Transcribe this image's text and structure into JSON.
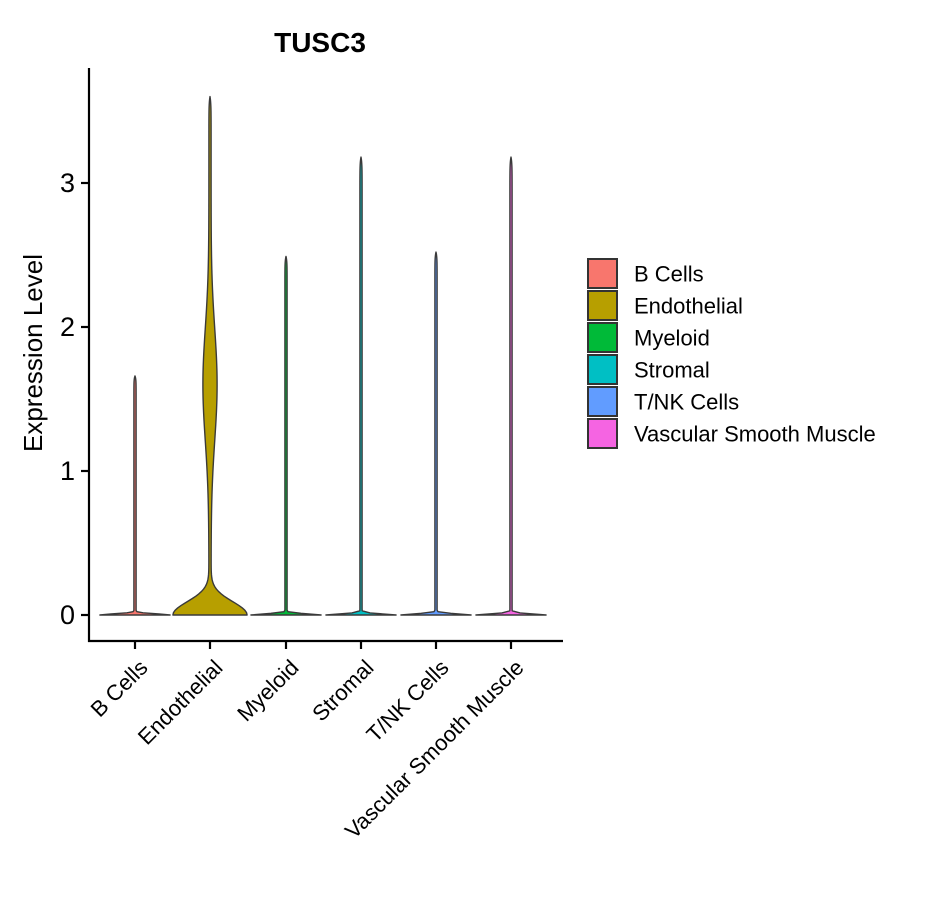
{
  "chart_data": {
    "type": "violin",
    "title": "TUSC3",
    "ylabel": "Expression Level",
    "xlabel": "",
    "ylim": [
      0,
      3.8
    ],
    "yticks": [
      0,
      1,
      2,
      3
    ],
    "grid": false,
    "legend_position": "right",
    "categories": [
      "B Cells",
      "Endothelial",
      "Myeloid",
      "Stromal",
      "T/NK Cells",
      "Vascular Smooth Muscle"
    ],
    "series": [
      {
        "name": "B Cells",
        "color": "#F8766D",
        "max_expression": 1.66,
        "zero_bar_halfwidth": 34,
        "zero_bar_sigma": 0.012,
        "bulges": []
      },
      {
        "name": "Endothelial",
        "color": "#B79F00",
        "max_expression": 3.6,
        "zero_bar_halfwidth": 36,
        "zero_bar_sigma": 0.13,
        "bulges": [
          {
            "center": 1.6,
            "sigma": 0.55,
            "halfwidth": 6
          }
        ]
      },
      {
        "name": "Myeloid",
        "color": "#00BA38",
        "max_expression": 2.49,
        "zero_bar_halfwidth": 34,
        "zero_bar_sigma": 0.012,
        "bulges": []
      },
      {
        "name": "Stromal",
        "color": "#00BFC4",
        "max_expression": 3.18,
        "zero_bar_halfwidth": 34,
        "zero_bar_sigma": 0.012,
        "bulges": []
      },
      {
        "name": "T/NK Cells",
        "color": "#619CFF",
        "max_expression": 2.52,
        "zero_bar_halfwidth": 34,
        "zero_bar_sigma": 0.012,
        "bulges": []
      },
      {
        "name": "Vascular Smooth Muscle",
        "color": "#F564E2",
        "max_expression": 3.18,
        "zero_bar_halfwidth": 34,
        "zero_bar_sigma": 0.012,
        "bulges": []
      }
    ],
    "outline_color": "#3A3A3A",
    "axis_color": "#000000",
    "background_color": "#FFFFFF"
  }
}
